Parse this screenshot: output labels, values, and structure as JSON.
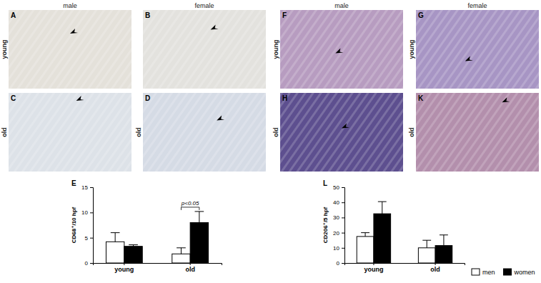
{
  "figure": {
    "panels": [
      {
        "letter": "A",
        "header": "male",
        "row_label": "young"
      },
      {
        "letter": "B",
        "header": "female"
      },
      {
        "letter": "F",
        "header": "male",
        "row_label": "young"
      },
      {
        "letter": "G",
        "header": "female",
        "row_label": "young"
      },
      {
        "letter": "C",
        "row_label": "old"
      },
      {
        "letter": "D",
        "row_label": "old"
      },
      {
        "letter": "H",
        "row_label": "old"
      },
      {
        "letter": "K",
        "row_label": "old"
      }
    ]
  },
  "chart_data": [
    {
      "type": "bar",
      "title": "E",
      "y_label": "CD68⁺/10 hpf",
      "categories": [
        "young",
        "old"
      ],
      "series": [
        {
          "name": "men",
          "color": "#ffffff",
          "values": [
            4.2,
            1.8
          ],
          "errors": [
            1.8,
            1.2
          ]
        },
        {
          "name": "women",
          "color": "#000000",
          "values": [
            3.3,
            8.0
          ],
          "errors": [
            0.3,
            2.2
          ]
        }
      ],
      "ylim": [
        0,
        15
      ],
      "yticks": [
        0,
        5,
        10,
        15
      ],
      "annotations": [
        {
          "text": "p<0.05",
          "category": "old"
        }
      ]
    },
    {
      "type": "bar",
      "title": "L",
      "y_label": "CD206⁺/5 hpf",
      "categories": [
        "young",
        "old"
      ],
      "series": [
        {
          "name": "men",
          "color": "#ffffff",
          "values": [
            17.5,
            10
          ],
          "errors": [
            2.5,
            5
          ]
        },
        {
          "name": "women",
          "color": "#000000",
          "values": [
            32.5,
            11.5
          ],
          "errors": [
            8,
            7
          ]
        }
      ],
      "ylim": [
        0,
        50
      ],
      "yticks": [
        0,
        10,
        20,
        30,
        40,
        50
      ],
      "legend": "bottom right"
    }
  ]
}
